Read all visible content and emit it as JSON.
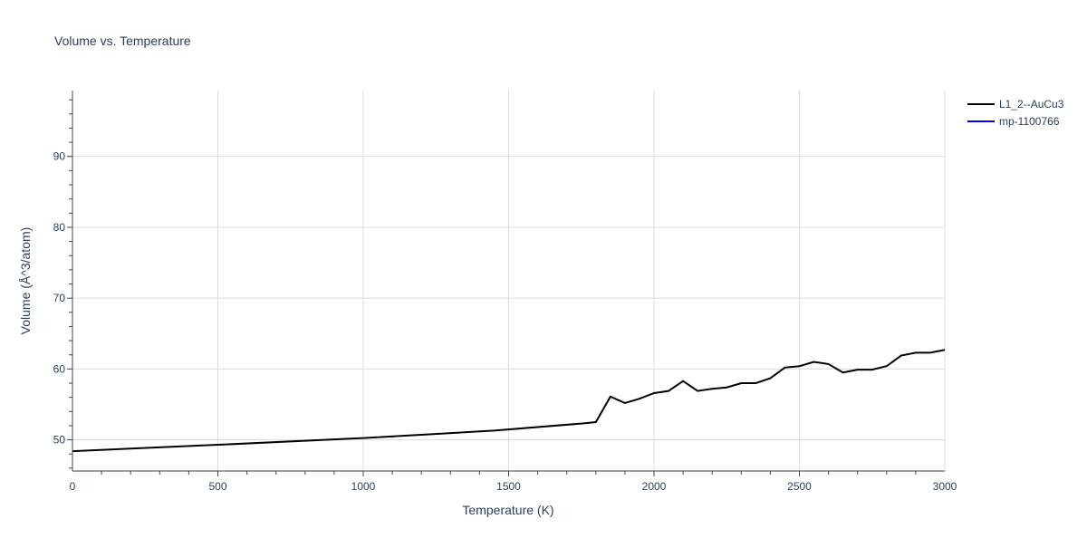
{
  "chart_data": {
    "type": "line",
    "title": "Volume vs. Temperature",
    "xlabel": "Temperature (K)",
    "ylabel": "Volume (Å^3/atom)",
    "xlim": [
      0,
      3000
    ],
    "ylim": [
      45.6,
      99.3
    ],
    "xticks": [
      0,
      500,
      1000,
      1500,
      2000,
      2500,
      3000
    ],
    "yticks": [
      50,
      60,
      70,
      80,
      90
    ],
    "grid": true,
    "legend_position": "top-right",
    "series": [
      {
        "name": "L1_2--AuCu3",
        "color": "#000000",
        "x": [
          0,
          500,
          1000,
          1450,
          1750,
          1800,
          1850,
          1900,
          1950,
          2000,
          2050,
          2100,
          2150,
          2200,
          2250,
          2300,
          2350,
          2400,
          2450,
          2500,
          2550,
          2600,
          2650,
          2700,
          2750,
          2800,
          2850,
          2900,
          2950,
          3000
        ],
        "y": [
          48.4,
          49.3,
          50.25,
          51.3,
          52.3,
          52.5,
          56.1,
          55.2,
          55.8,
          56.6,
          56.9,
          58.3,
          56.9,
          57.2,
          57.4,
          58.0,
          58.0,
          58.7,
          60.2,
          60.4,
          61.0,
          60.7,
          59.5,
          59.9,
          59.9,
          60.4,
          61.9,
          62.3,
          62.3,
          62.7
        ]
      },
      {
        "name": "mp-1100766",
        "color": "#0000ff",
        "x": [],
        "y": []
      }
    ]
  }
}
